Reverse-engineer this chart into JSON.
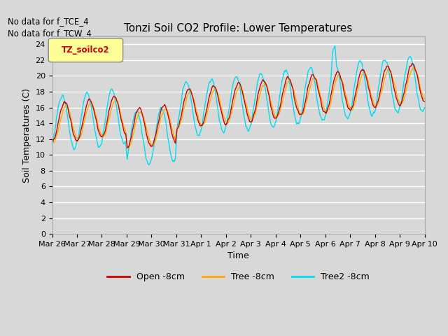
{
  "title": "Tonzi Soil CO2 Profile: Lower Temperatures",
  "xlabel": "Time",
  "ylabel": "Soil Temperatures (C)",
  "ylim": [
    0,
    25
  ],
  "yticks": [
    0,
    2,
    4,
    6,
    8,
    10,
    12,
    14,
    16,
    18,
    20,
    22,
    24
  ],
  "x_labels": [
    "Mar 26",
    "Mar 27",
    "Mar 28",
    "Mar 29",
    "Mar 30",
    "Mar 31",
    "Apr 1",
    "Apr 2",
    "Apr 3",
    "Apr 4",
    "Apr 5",
    "Apr 6",
    "Apr 7",
    "Apr 8",
    "Apr 9",
    "Apr 10"
  ],
  "no_data_text1": "No data for f_TCE_4",
  "no_data_text2": "No data for f_TCW_4",
  "legend_box_label": "TZ_soilco2",
  "legend_box_color": "#ffff99",
  "legend_box_text_color": "#cc0000",
  "fig_bg_color": "#d8d8d8",
  "plot_bg_color": "#d8d8d8",
  "grid_color": "#ffffff",
  "line_colors": [
    "#cc0000",
    "#ffaa00",
    "#00ddee"
  ],
  "line_labels": [
    "Open -8cm",
    "Tree -8cm",
    "Tree2 -8cm"
  ],
  "line_width": 1.0,
  "n_days": 15,
  "samples_per_day": 48
}
